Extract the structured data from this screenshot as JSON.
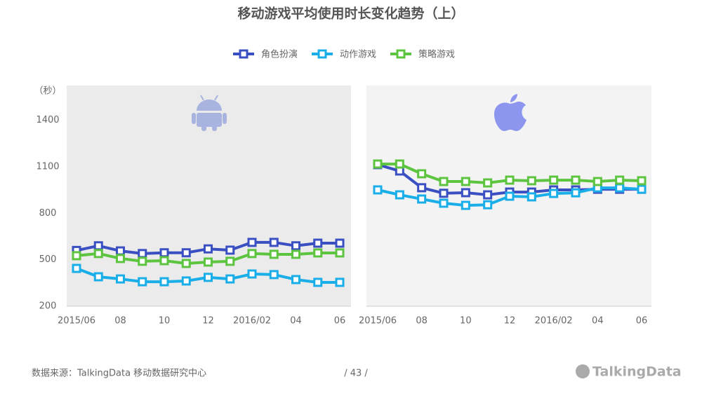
{
  "chart_data": [
    {
      "type": "line",
      "title": "移动游戏平均使用时长变化趋势（上）",
      "y_label": "（秒）",
      "categories": [
        "2015/06",
        null,
        "08",
        null,
        "10",
        null,
        "12",
        null,
        "2016/02",
        null,
        "04",
        null,
        "06"
      ],
      "ylim": [
        200,
        1625
      ],
      "yticks": [
        200,
        500,
        800,
        1100,
        1400
      ],
      "series": [
        {
          "name": "角色扮演",
          "color": "#3a4fc1",
          "values": [
            560,
            590,
            557,
            540,
            545,
            545,
            570,
            562,
            612,
            612,
            590,
            607,
            607
          ]
        },
        {
          "name": "动作游戏",
          "color": "#1aaee8",
          "values": [
            444,
            390,
            376,
            358,
            358,
            363,
            386,
            376,
            408,
            404,
            372,
            354,
            354
          ]
        },
        {
          "name": "策略游戏",
          "color": "#5cc43e",
          "values": [
            526,
            540,
            508,
            490,
            494,
            476,
            485,
            490,
            540,
            535,
            535,
            544,
            544
          ]
        }
      ]
    },
    {
      "type": "line",
      "categories": [
        "2015/06",
        null,
        "08",
        null,
        "10",
        null,
        "12",
        null,
        "2016/02",
        null,
        "04",
        null,
        "06"
      ],
      "ylim": [
        200,
        1625
      ],
      "series": [
        {
          "values": [
            1114,
            1073,
            965,
            929,
            933,
            919,
            937,
            937,
            951,
            951,
            955,
            955,
            955
          ]
        },
        {
          "values": [
            951,
            919,
            892,
            865,
            851,
            855,
            910,
            906,
            928,
            932,
            964,
            964,
            955
          ]
        },
        {
          "values": [
            1118,
            1118,
            1055,
            1005,
            1005,
            996,
            1014,
            1010,
            1014,
            1014,
            1005,
            1014,
            1010
          ]
        }
      ]
    }
  ],
  "footer": {
    "source": "数据来源：TalkingData  移动数据研究中心",
    "page": "/  43  /",
    "logo": "TalkingData"
  }
}
